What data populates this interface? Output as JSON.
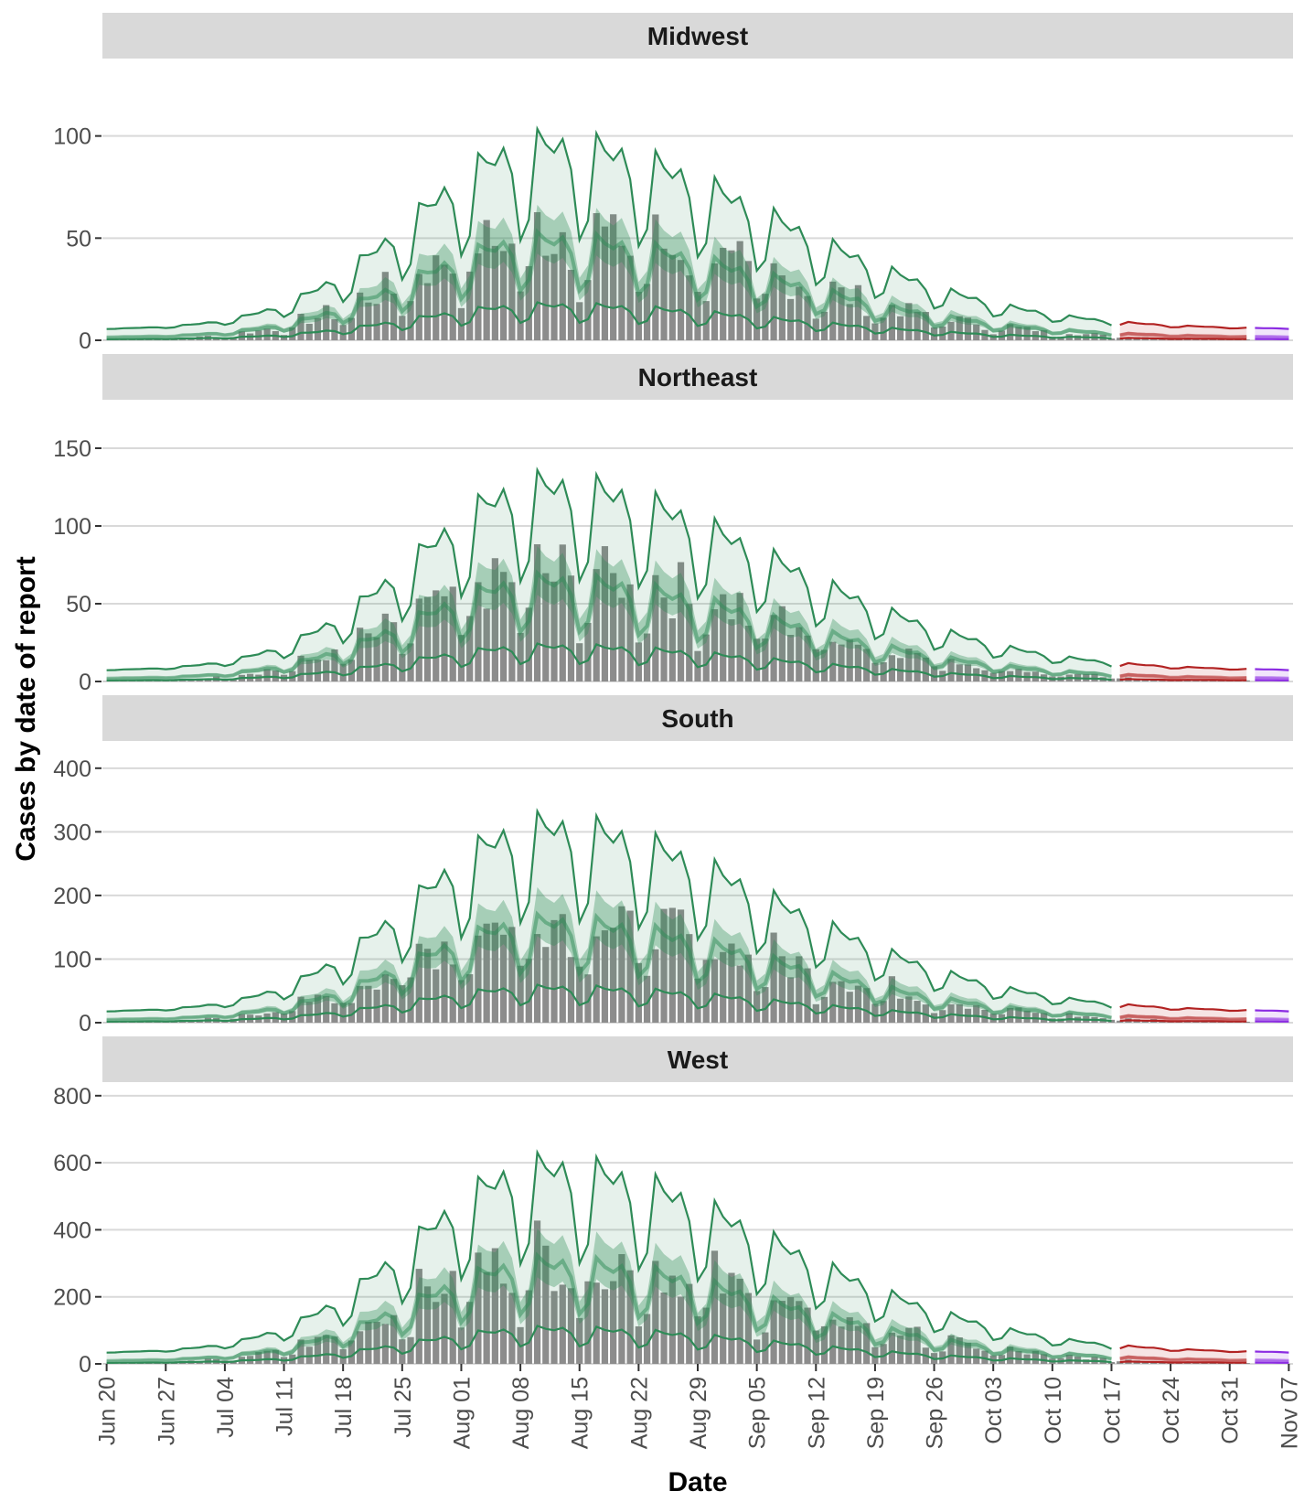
{
  "chart_data": {
    "type": "bar",
    "ylabel": "Cases by date of report",
    "xlabel": "Date",
    "x_ticks": [
      "Jun 20",
      "Jun 27",
      "Jul 04",
      "Jul 11",
      "Jul 18",
      "Jul 25",
      "Aug 01",
      "Aug 08",
      "Aug 15",
      "Aug 22",
      "Aug 29",
      "Sep 05",
      "Sep 12",
      "Sep 19",
      "Sep 26",
      "Oct 03",
      "Oct 10",
      "Oct 17",
      "Oct 24",
      "Oct 31",
      "Nov 07"
    ],
    "x_range": [
      "2020-06-20",
      "2020-11-07"
    ],
    "segments": {
      "estimate": {
        "start": "2020-06-20",
        "end": "2020-10-17",
        "color": "#2e8b57"
      },
      "estimate_based_on_partial_data": {
        "start": "2020-10-18",
        "end": "2020-11-02",
        "color": "#b22222"
      },
      "forecast": {
        "start": "2020-11-03",
        "end": "2020-11-07",
        "color": "#8b2be2"
      }
    },
    "colors": {
      "bars": "#8c8c8c",
      "strip": "#d9d9d9",
      "grid": "#d9d9d9"
    },
    "grid": true,
    "panels": [
      {
        "name": "Midwest",
        "ylim": [
          0,
          137
        ],
        "yticks": [
          0,
          50,
          100
        ],
        "peak_scale": 1
      },
      {
        "name": "Northeast",
        "ylim": [
          0,
          180
        ],
        "yticks": [
          0,
          50,
          100,
          150
        ],
        "peak_scale": 1
      },
      {
        "name": "South",
        "ylim": [
          0,
          440
        ],
        "yticks": [
          0,
          100,
          200,
          300,
          400
        ],
        "peak_scale": 1
      },
      {
        "name": "West",
        "ylim": [
          0,
          835
        ],
        "yticks": [
          0,
          200,
          400,
          600,
          800
        ],
        "peak_scale": 1
      }
    ]
  }
}
